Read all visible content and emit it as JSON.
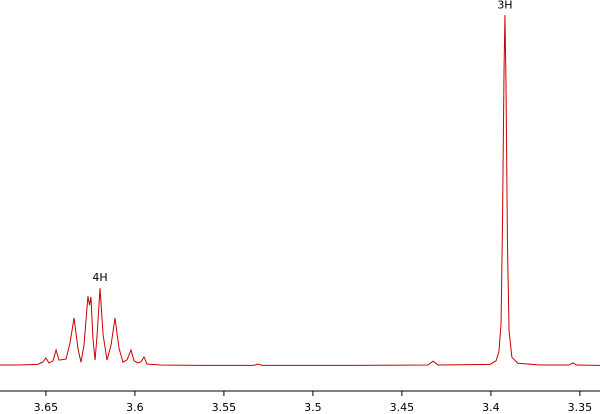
{
  "chart_data": {
    "type": "line",
    "x": [
      3.6758,
      3.6646,
      3.6545,
      3.6516,
      3.65,
      3.6483,
      3.646,
      3.6443,
      3.6427,
      3.6387,
      3.6365,
      3.6342,
      3.632,
      3.6303,
      3.6286,
      3.6264,
      3.6255,
      3.6247,
      3.6236,
      3.6224,
      3.6213,
      3.6196,
      3.6179,
      3.6157,
      3.6134,
      3.6112,
      3.6089,
      3.6067,
      3.6044,
      3.6022,
      3.6005,
      3.5983,
      3.5966,
      3.5949,
      3.5932,
      3.5859,
      3.5634,
      3.5331,
      3.5309,
      3.5286,
      3.4792,
      3.4354,
      3.4325,
      3.4297,
      3.4005,
      3.3971,
      3.3955,
      3.3943,
      3.3935,
      3.3926,
      3.3921,
      3.3915,
      3.3907,
      3.3898,
      3.3882,
      3.3848,
      3.3724,
      3.3561,
      3.3539,
      3.3516,
      3.3387
    ],
    "series": [
      {
        "color": "#cc0000",
        "values": [
          0.3,
          0.3,
          0.5,
          1.2,
          2.3,
          0.9,
          1.5,
          4.6,
          1.7,
          2.0,
          6.5,
          13.7,
          5.0,
          1.1,
          6.0,
          19.9,
          17.4,
          19.7,
          8.0,
          1.7,
          8.5,
          22.2,
          9.0,
          1.7,
          6.0,
          13.7,
          5.0,
          1.1,
          1.8,
          4.6,
          1.5,
          0.9,
          1.2,
          2.6,
          0.6,
          0.3,
          0.2,
          0.2,
          0.6,
          0.2,
          0.2,
          0.3,
          1.4,
          0.3,
          0.5,
          1.5,
          4.0,
          12.0,
          40,
          85,
          100,
          80,
          35,
          10.0,
          2.5,
          0.8,
          0.3,
          0.3,
          0.9,
          0.3,
          0.2
        ]
      }
    ],
    "xlim": [
      3.6758,
      3.3387
    ],
    "ylim": [
      -7.1,
      104.3
    ],
    "xticks": [
      3.65,
      3.6,
      3.55,
      3.5,
      3.45,
      3.4,
      3.35
    ],
    "annotations": [
      {
        "text": "4H",
        "x": 3.6196,
        "y": 25.1
      },
      {
        "text": "3H",
        "x": 3.3921,
        "y": 102.8
      }
    ]
  }
}
